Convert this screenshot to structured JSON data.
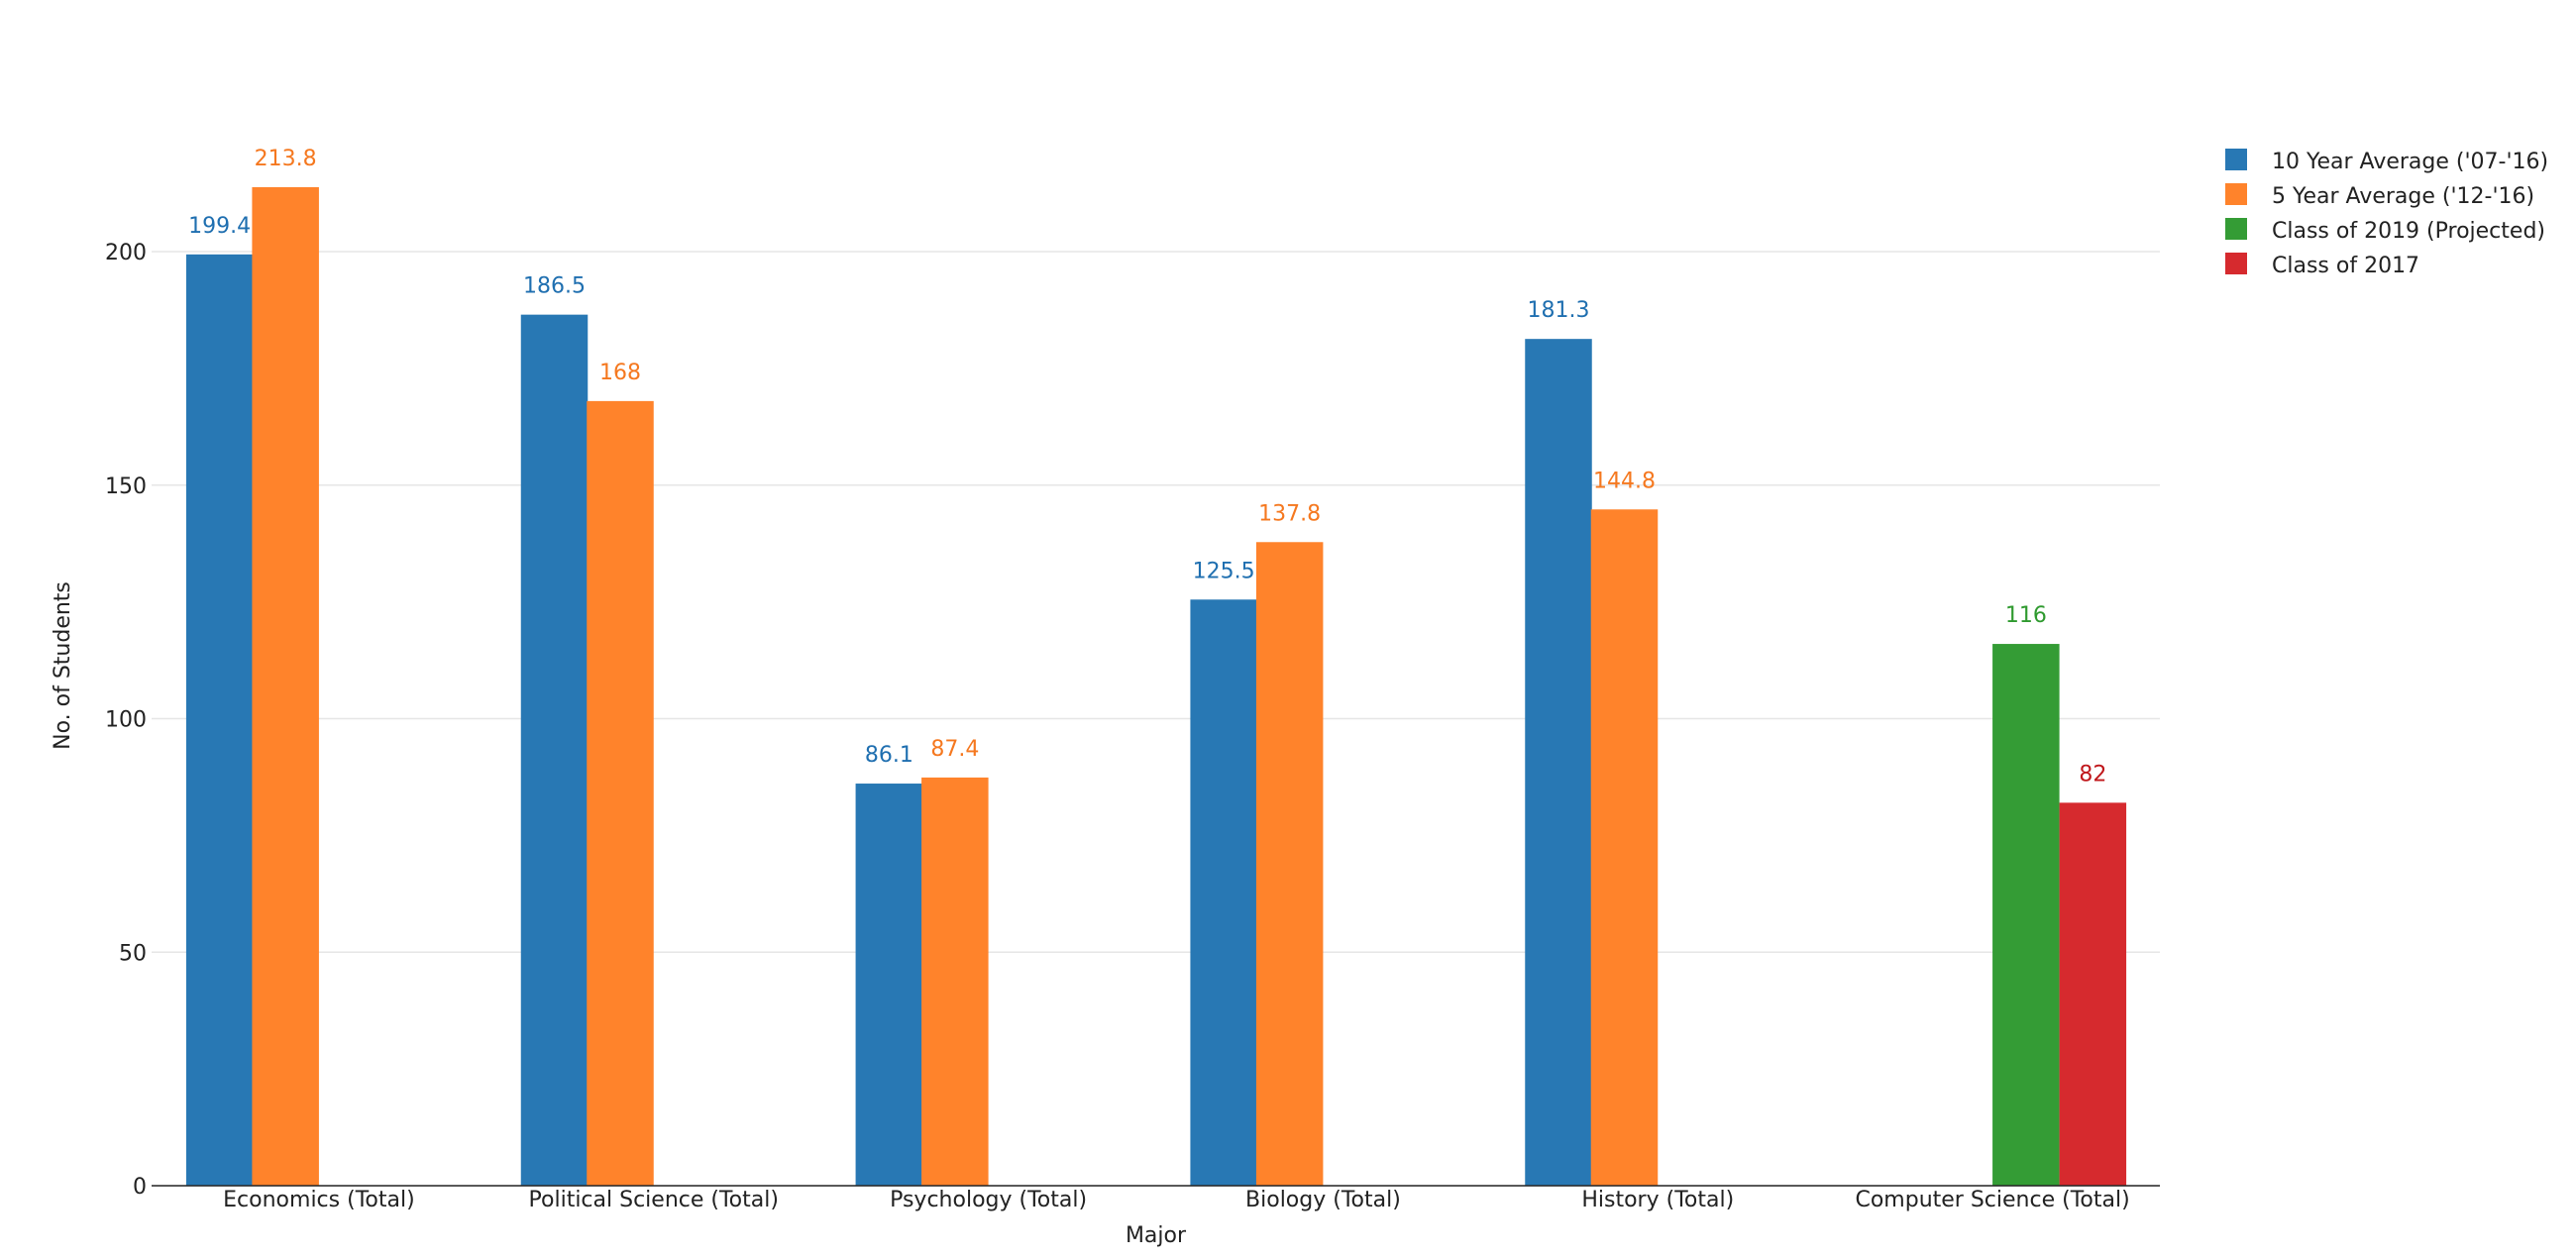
{
  "chart_data": {
    "type": "bar",
    "title": "",
    "xlabel": "Major",
    "ylabel": "No. of Students",
    "ylim": [
      0,
      225
    ],
    "yticks": [
      0,
      50,
      100,
      150,
      200
    ],
    "grid": true,
    "legend_position": "top-right",
    "categories": [
      "Economics (Total)",
      "Political Science (Total)",
      "Psychology (Total)",
      "Biology (Total)",
      "History (Total)",
      "Computer Science (Total)"
    ],
    "series": [
      {
        "name": "10 Year Average ('07-'16)",
        "color": "#2878b4",
        "label_color": "#1f6fb0",
        "values": [
          199.4,
          186.5,
          86.1,
          125.5,
          181.3,
          null
        ],
        "labels": [
          "199.4",
          "186.5",
          "86.1",
          "125.5",
          "181.3",
          ""
        ]
      },
      {
        "name": "5 Year Average ('12-'16)",
        "color": "#ff832b",
        "label_color": "#f5781f",
        "values": [
          213.8,
          168,
          87.4,
          137.8,
          144.8,
          null
        ],
        "labels": [
          "213.8",
          "168",
          "87.4",
          "137.8",
          "144.8",
          ""
        ]
      },
      {
        "name": "Class of 2019 (Projected)",
        "color": "#349c35",
        "label_color": "#2f9a2f",
        "values": [
          null,
          null,
          null,
          null,
          null,
          116
        ],
        "labels": [
          "",
          "",
          "",
          "",
          "",
          "116"
        ]
      },
      {
        "name": "Class of 2017",
        "color": "#d62a2e",
        "label_color": "#c0171b",
        "values": [
          null,
          null,
          null,
          null,
          null,
          82
        ],
        "labels": [
          "",
          "",
          "",
          "",
          "",
          "82"
        ]
      }
    ]
  }
}
